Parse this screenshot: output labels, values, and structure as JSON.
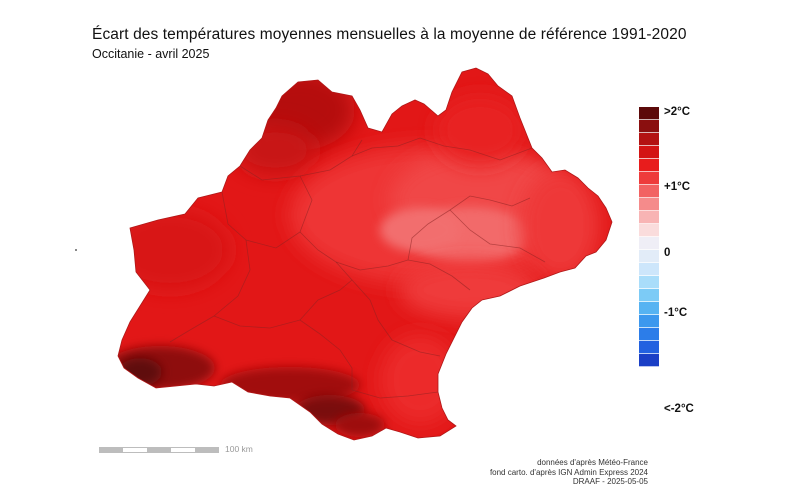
{
  "title": "Écart des températures moyennes mensuelles à la moyenne de référence 1991-2020",
  "subtitle": "Occitanie - avril 2025",
  "legend": {
    "labels": {
      "top": ">2°C",
      "plus1": "+1°C",
      "zero": "0",
      "minus1": "-1°C",
      "bottom": "<-2°C"
    },
    "colors": [
      "#5c0a0a",
      "#8a0f0f",
      "#b31212",
      "#d31414",
      "#e81c1c",
      "#ee3b3b",
      "#f26262",
      "#f58b8b",
      "#f8b4b4",
      "#fadcdc",
      "#efeef6",
      "#e2ecf8",
      "#cde6fb",
      "#a9ddfa",
      "#7ccbf6",
      "#56b3f2",
      "#3c98ee",
      "#2c7de9",
      "#2261e0",
      "#1a3fc6"
    ]
  },
  "scale": {
    "label": "100 km"
  },
  "credits": {
    "line1": "données d'après Météo-France",
    "line2": "fond carto. d'après IGN Admin Express 2024",
    "line3": "DRAAF - 2025-05-05"
  }
}
